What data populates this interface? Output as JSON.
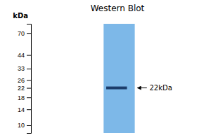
{
  "chart_data": {
    "type": "gel",
    "title": "Western Blot",
    "y_label": "kDa",
    "log": "y",
    "ylim": [
      8.5,
      85
    ],
    "yticks": [
      70,
      44,
      33,
      26,
      22,
      18,
      14,
      10
    ],
    "tick_labels": "y",
    "values": [
      22
    ],
    "value_labels": [
      "22kDa"
    ],
    "data_labels": true,
    "color": "#1c3d6b"
  }
}
